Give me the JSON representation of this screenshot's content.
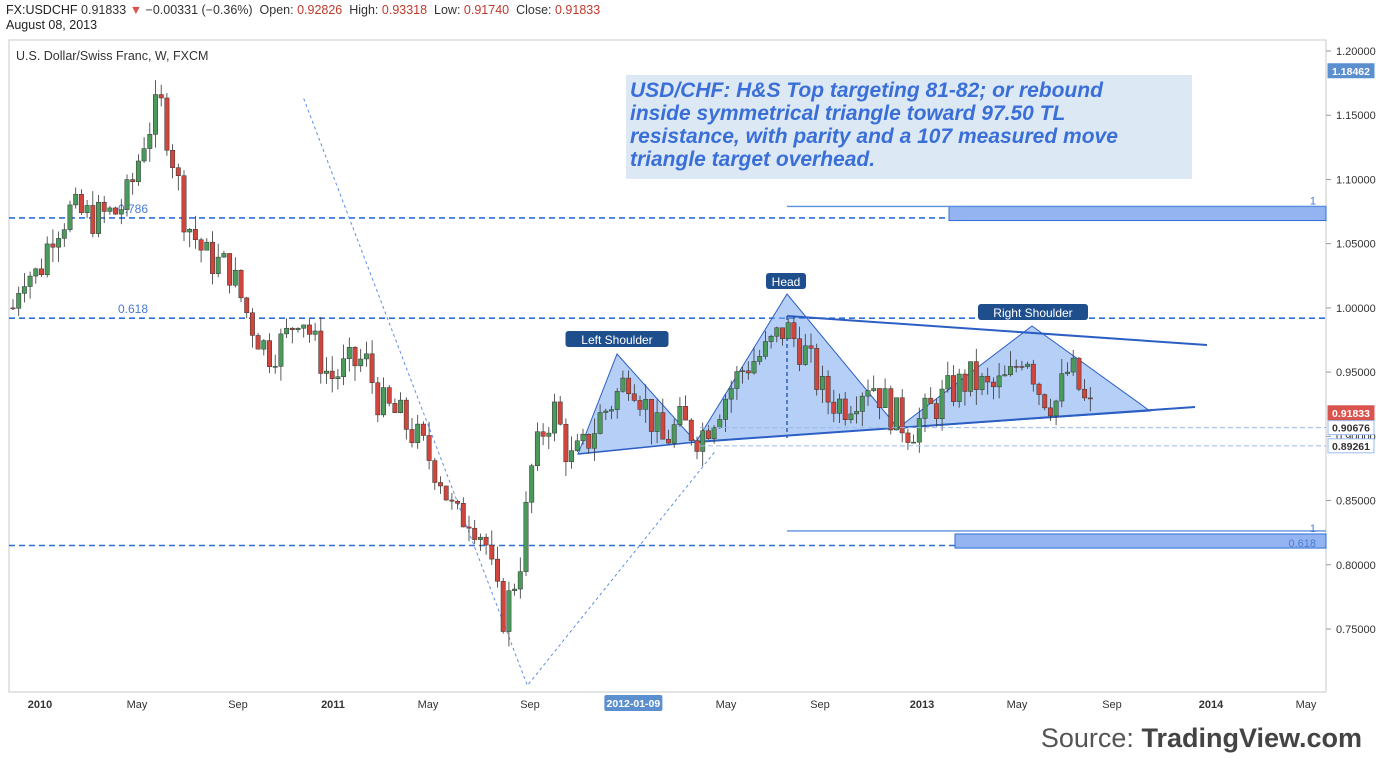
{
  "header": {
    "symbol": "FX:USDCHF",
    "last": "0.91833",
    "change": "−0.00331 (−0.36%)",
    "open_label": "Open:",
    "open": "0.92826",
    "high_label": "High:",
    "high": "0.93318",
    "low_label": "Low:",
    "low": "0.91740",
    "close_label": "Close:",
    "close": "0.91833",
    "date": "August 08, 2013"
  },
  "source": {
    "prefix": "Source:",
    "brand": "TradingView.com"
  },
  "colors": {
    "up": "#4a9a5c",
    "down": "#d0463c",
    "fib": "#2f6fd8",
    "pattern_fill": "#7aa7ee",
    "annotation_text": "#3a6fd8",
    "annotation_bg": "#dce8f4"
  },
  "chart_data": {
    "type": "candlestick",
    "title": "U.S. Dollar/Swiss Franc, W, FXCM",
    "annotation": [
      "USD/CHF: H&S Top targeting 81-82; or rebound",
      "inside symmetrical triangle toward 97.50 TL",
      "resistance, with parity and a 107 measured move",
      "triangle target overhead."
    ],
    "x_tick_labels": [
      "2010",
      "May",
      "Sep",
      "2011",
      "May",
      "Sep",
      "2012-01-09",
      "May",
      "Sep",
      "2013",
      "May",
      "Sep",
      "2014",
      "May"
    ],
    "x_tick_bold": [
      "2010",
      "2011",
      "2012-01-09",
      "2013",
      "2014"
    ],
    "highlight_x_label": "2012-01-09",
    "y_ticks": [
      1.2,
      1.15,
      1.1,
      1.05,
      1.0,
      0.95,
      0.9,
      0.85,
      0.8,
      0.75
    ],
    "y_tick_labels": [
      "1.20000",
      "1.15000",
      "1.10000",
      "1.05000",
      "1.00000",
      "0.95000",
      "0.90000",
      "0.85000",
      "0.80000",
      "0.75000"
    ],
    "ylim": [
      0.7,
      1.205
    ],
    "price_badges": [
      {
        "label": "1.18462",
        "value": 1.18462,
        "color": "#5b8fcf"
      },
      {
        "label": "0.91833",
        "value": 0.91833,
        "color": "#d9534f"
      },
      {
        "label": "0.90676",
        "value": 0.90676,
        "color": "#ffffff"
      },
      {
        "label": "0.89261",
        "value": 0.89261,
        "color": "#ffffff"
      }
    ],
    "horizontal_levels": [
      {
        "label": "0.786",
        "value": 1.07
      },
      {
        "label": "0.618",
        "value": 0.992
      },
      {
        "label": "",
        "value": 0.815
      }
    ],
    "target_boxes": [
      {
        "labels": [
          "1"
        ],
        "top": 1.079,
        "bottom": 1.068
      },
      {
        "labels": [
          "1",
          "0.618"
        ],
        "top": 0.824,
        "bottom": 0.813
      }
    ],
    "pattern_labels": [
      "Left Shoulder",
      "Head",
      "Right Shoulder"
    ],
    "triangle_upper": [
      [
        2012.62,
        0.996
      ],
      [
        2013.95,
        0.972
      ]
    ],
    "triangle_lower": [
      [
        2011.95,
        0.887
      ],
      [
        2013.95,
        0.918
      ]
    ],
    "neckline": [
      [
        2011.5,
        0.884
      ],
      [
        2012.75,
        0.895
      ],
      [
        2013.8,
        0.912
      ]
    ],
    "candles": [
      [
        2010.0,
        0.995,
        1.016
      ],
      [
        2010.03,
        1.016,
        1.031
      ],
      [
        2010.06,
        1.031,
        1.038
      ],
      [
        2010.1,
        1.038,
        1.03
      ],
      [
        2010.13,
        1.03,
        1.025
      ],
      [
        2010.16,
        1.025,
        1.034
      ],
      [
        2010.2,
        1.034,
        1.021
      ],
      [
        2010.23,
        1.021,
        1.033
      ],
      [
        2010.26,
        1.033,
        1.05
      ],
      [
        2010.3,
        1.05,
        1.065
      ],
      [
        2010.33,
        1.065,
        1.07
      ],
      [
        2010.36,
        1.07,
        1.08
      ],
      [
        2010.4,
        1.08,
        1.078
      ],
      [
        2010.43,
        1.078,
        1.07
      ],
      [
        2010.46,
        1.07,
        1.08
      ],
      [
        2010.5,
        1.08,
        1.068
      ],
      [
        2010.53,
        1.068,
        1.058
      ],
      [
        2010.56,
        1.058,
        1.065
      ],
      [
        2010.6,
        1.065,
        1.06
      ],
      [
        2010.63,
        1.06,
        1.065
      ],
      [
        2010.66,
        1.065,
        1.058
      ],
      [
        2010.7,
        1.058,
        1.063
      ],
      [
        2010.73,
        1.063,
        1.075
      ],
      [
        2010.76,
        1.075,
        1.09
      ],
      [
        2010.8,
        1.09,
        1.1
      ],
      [
        2010.83,
        1.1,
        1.125
      ],
      [
        2010.86,
        1.125,
        1.14
      ],
      [
        2010.9,
        1.14,
        1.155
      ],
      [
        2010.93,
        1.155,
        1.16
      ],
      [
        2010.96,
        1.16,
        1.15
      ],
      [
        2011.0,
        1.15,
        1.165
      ],
      [
        2011.03,
        1.165,
        1.155
      ],
      [
        2011.06,
        1.155,
        1.12
      ],
      [
        2011.1,
        1.12,
        1.098
      ],
      [
        2011.13,
        1.098,
        1.08
      ],
      [
        2011.16,
        1.08,
        1.065
      ],
      [
        2011.2,
        1.065,
        1.055
      ],
      [
        2011.23,
        1.055,
        1.045
      ],
      [
        2011.26,
        1.045,
        1.035
      ],
      [
        2011.3,
        1.035,
        1.04
      ],
      [
        2011.33,
        1.04,
        1.038
      ],
      [
        2011.36,
        1.038,
        1.03
      ],
      [
        2011.4,
        1.03,
        1.042
      ],
      [
        2011.43,
        1.042,
        1.025
      ],
      [
        2011.46,
        1.025,
        1.02
      ],
      [
        2011.5,
        1.02,
        1.008
      ],
      [
        2011.53,
        1.008,
        0.99
      ],
      [
        2011.56,
        0.99,
        0.98
      ],
      [
        2011.6,
        0.98,
        0.97
      ],
      [
        2011.63,
        0.97,
        0.96
      ],
      [
        2011.66,
        0.96,
        0.97
      ],
      [
        2011.7,
        0.97,
        0.965
      ],
      [
        2011.73,
        0.965,
        0.975
      ],
      [
        2011.76,
        0.975,
        0.99
      ],
      [
        2011.8,
        0.99,
        0.975
      ],
      [
        2011.83,
        0.975,
        0.998
      ],
      [
        2011.86,
        0.998,
        0.985
      ],
      [
        2011.9,
        0.985,
        0.97
      ],
      [
        2011.93,
        0.97,
        0.955
      ],
      [
        2011.96,
        0.955,
        0.945
      ]
    ]
  }
}
